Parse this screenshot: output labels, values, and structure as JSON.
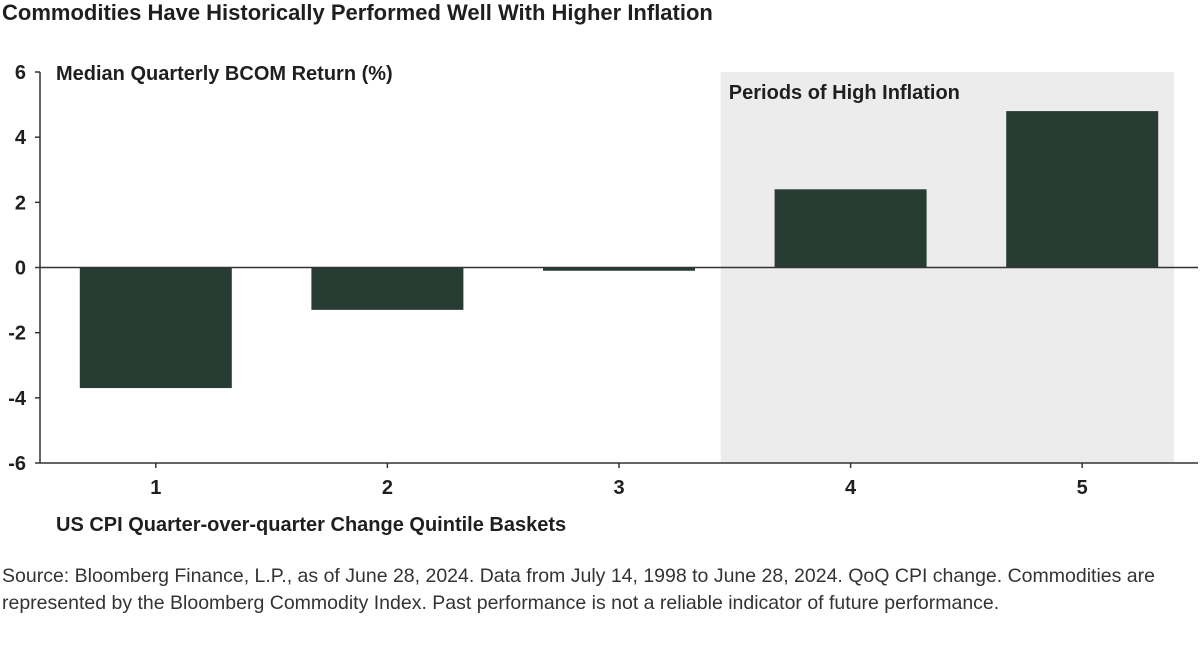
{
  "title": "Commodities Have Historically Performed Well With Higher Inflation",
  "source": "Source: Bloomberg Finance, L.P., as of June 28, 2024. Data from July 14, 1998 to June 28, 2024. QoQ CPI change. Commodities are represented by the Bloomberg Commodity Index. Past performance is not a reliable indicator of future performance.",
  "colors": {
    "bar": "#273d33",
    "shade": "#ececec",
    "axis": "#333333"
  },
  "chart_data": {
    "type": "bar",
    "title": "Commodities Have Historically Performed Well With Higher Inflation",
    "ylabel": "Median Quarterly BCOM Return (%)",
    "xlabel": "US CPI Quarter-over-quarter Change Quintile Baskets",
    "categories": [
      "1",
      "2",
      "3",
      "4",
      "5"
    ],
    "values": [
      -3.7,
      -1.3,
      -0.1,
      2.4,
      4.8
    ],
    "ylim": [
      -6,
      6
    ],
    "yticks": [
      6,
      4,
      2,
      0,
      -2,
      -4,
      -6
    ],
    "ytick_labels": [
      "6",
      "4",
      "2",
      "0",
      "-2",
      "-4",
      "-6"
    ],
    "grid": false,
    "annotations": [
      {
        "text": "Periods of High Inflation",
        "shaded_categories": [
          "4",
          "5"
        ]
      }
    ]
  }
}
